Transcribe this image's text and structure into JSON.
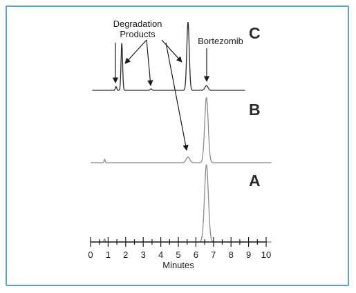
{
  "chart_data": {
    "type": "line",
    "xlabel": "Minutes",
    "xlim": [
      0,
      10
    ],
    "xticks": [
      0,
      1,
      2,
      3,
      4,
      5,
      6,
      7,
      8,
      9,
      10
    ],
    "series": [
      {
        "name": "C",
        "x_range": [
          0.1,
          8.8
        ],
        "baseline_noise": [
          [
            1.4,
            0.06
          ]
        ],
        "peaks": [
          {
            "x": 1.45,
            "height": 0.08,
            "width": 0.04
          },
          {
            "x": 1.78,
            "height": 1.0,
            "width": 0.045
          },
          {
            "x": 3.45,
            "height": 0.03,
            "width": 0.05
          },
          {
            "x": 5.55,
            "height": 1.45,
            "width": 0.07
          },
          {
            "x": 6.6,
            "height": 0.1,
            "width": 0.09
          }
        ]
      },
      {
        "name": "B",
        "x_range": [
          0.0,
          10.3
        ],
        "peaks": [
          {
            "x": 0.8,
            "height": 0.08,
            "width": 0.03
          },
          {
            "x": 5.55,
            "height": 0.13,
            "width": 0.1
          },
          {
            "x": 6.6,
            "height": 1.5,
            "width": 0.1
          }
        ]
      },
      {
        "name": "A",
        "x_range": [
          0.0,
          10.3
        ],
        "peaks": [
          {
            "x": 0.8,
            "height": 0.07,
            "width": 0.03
          },
          {
            "x": 6.6,
            "height": 1.75,
            "width": 0.11
          }
        ]
      }
    ],
    "annotations": [
      {
        "text": "Degradation",
        "line2": "Products",
        "targets": [
          {
            "series": "C",
            "x": 1.4
          },
          {
            "series": "C",
            "x": 1.9
          },
          {
            "series": "C",
            "x": 3.45
          },
          {
            "series": "C",
            "x": 5.5
          },
          {
            "series": "B",
            "x": 5.45
          }
        ]
      },
      {
        "text": "Bortezomib",
        "targets": [
          {
            "series": "C",
            "x": 6.6
          }
        ]
      }
    ],
    "panel_labels": [
      "C",
      "B",
      "A"
    ]
  },
  "colors": {
    "frame": "#5fa0c4",
    "trace_C": "#2a2a2a",
    "trace_B": "#8a8a8a",
    "trace_A": "#8a8a8a",
    "text": "#1a1a1a"
  },
  "labels": {
    "degradation_line1": "Degradation",
    "degradation_line2": "Products",
    "bortezomib": "Bortezomib",
    "panel_c": "C",
    "panel_b": "B",
    "panel_a": "A",
    "xlabel": "Minutes"
  }
}
